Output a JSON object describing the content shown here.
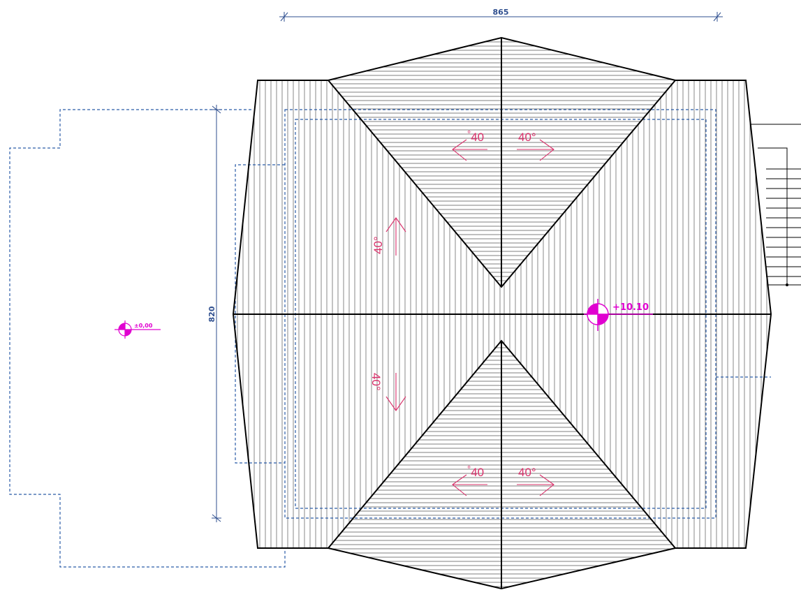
{
  "drawing": {
    "dimension_horizontal": "865",
    "dimension_vertical": "820",
    "level_ridge": "+10.10",
    "level_ground": "±0,00",
    "slope_angle": "40°",
    "slope_angle_label": "40",
    "slope_degree_mark": "°"
  },
  "colors": {
    "roof_line": "#000000",
    "hatch_line": "#555555",
    "dashed_outline": "#2b5ca8",
    "dimension": "#2f4f8f",
    "slope_arrow": "#d9306a",
    "level_marker": "#e000d0"
  }
}
